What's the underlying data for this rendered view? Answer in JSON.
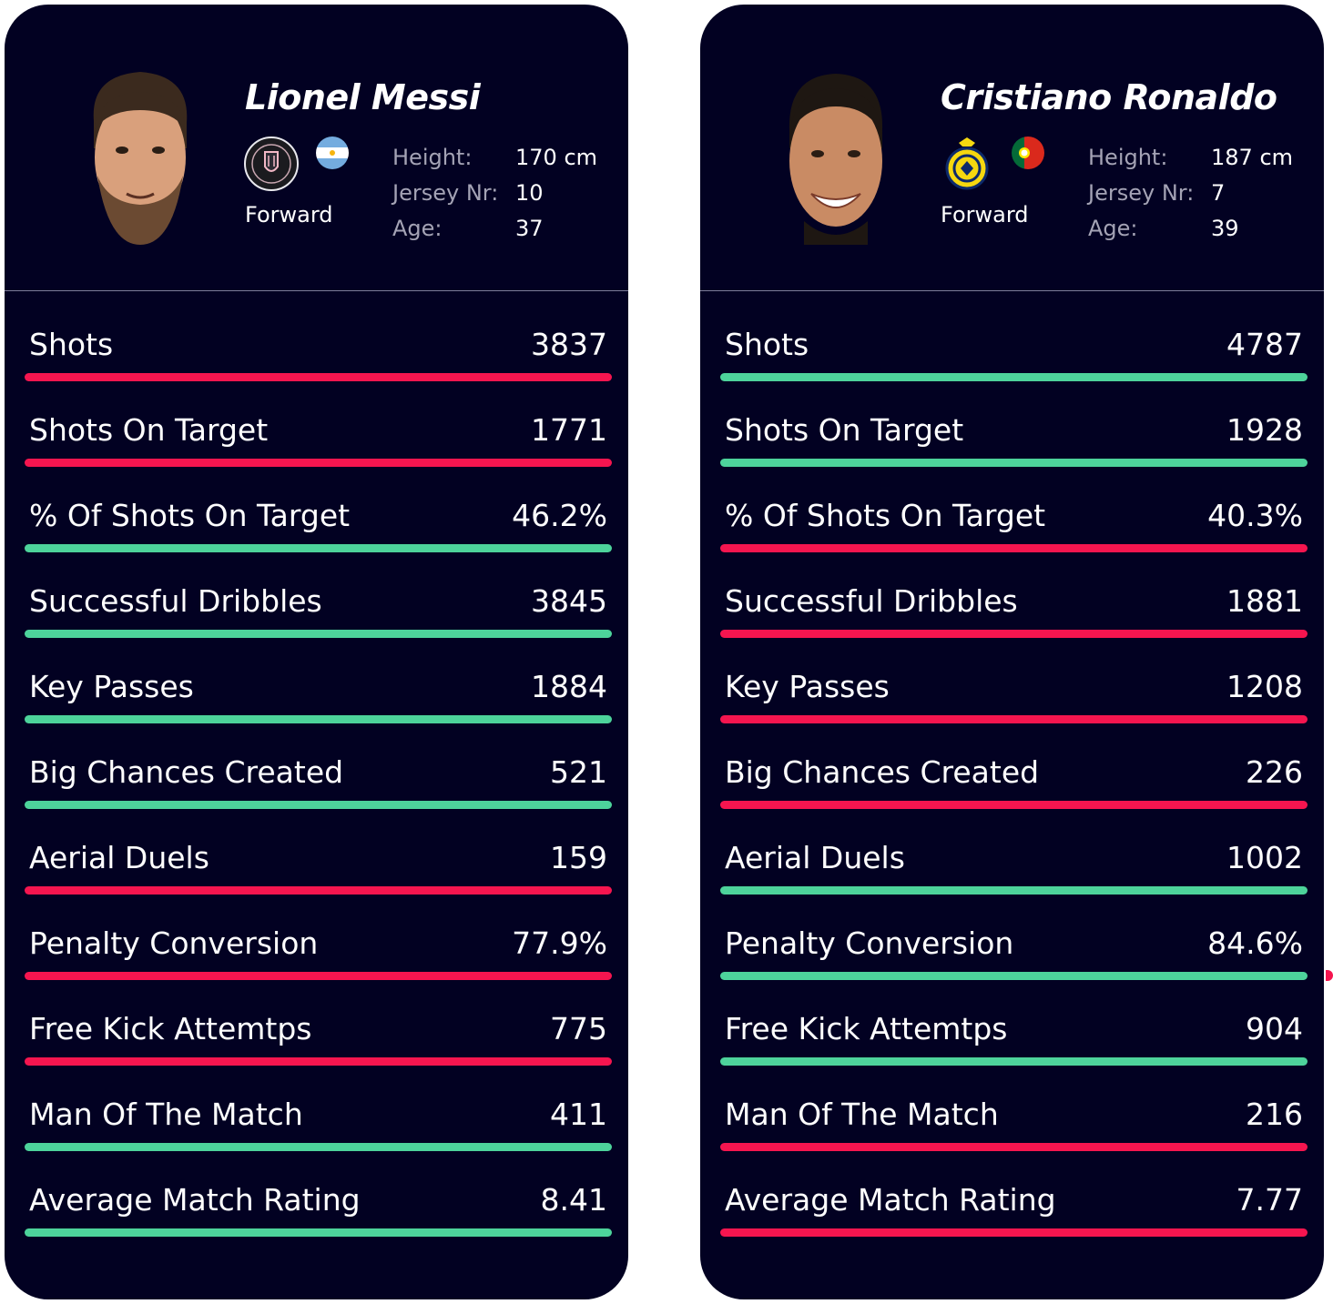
{
  "colors": {
    "background": "#020122",
    "better": "#4dd39b",
    "worse": "#f5154f"
  },
  "players": [
    {
      "name": "Lionel Messi",
      "club_icon": "inter-miami-crest-icon",
      "flag_icon": "argentina-flag-icon",
      "position": "Forward",
      "bio": [
        {
          "label": "Height:",
          "value": "170 cm"
        },
        {
          "label": "Jersey Nr:",
          "value": "10"
        },
        {
          "label": "Age:",
          "value": "37"
        }
      ],
      "stats": [
        {
          "label": "Shots",
          "value": "3837",
          "status": "worse"
        },
        {
          "label": "Shots On Target",
          "value": "1771",
          "status": "worse"
        },
        {
          "label": "% Of Shots On Target",
          "value": "46.2%",
          "status": "better"
        },
        {
          "label": "Successful Dribbles",
          "value": "3845",
          "status": "better"
        },
        {
          "label": "Key Passes",
          "value": "1884",
          "status": "better"
        },
        {
          "label": "Big Chances Created",
          "value": "521",
          "status": "better"
        },
        {
          "label": "Aerial Duels",
          "value": "159",
          "status": "worse"
        },
        {
          "label": "Penalty Conversion",
          "value": "77.9%",
          "status": "worse"
        },
        {
          "label": "Free Kick Attemtps",
          "value": "775",
          "status": "worse"
        },
        {
          "label": "Man Of The Match",
          "value": "411",
          "status": "better"
        },
        {
          "label": "Average Match Rating",
          "value": "8.41",
          "status": "better"
        }
      ]
    },
    {
      "name": "Cristiano Ronaldo",
      "club_icon": "al-nassr-crest-icon",
      "flag_icon": "portugal-flag-icon",
      "position": "Forward",
      "bio": [
        {
          "label": "Height:",
          "value": "187 cm"
        },
        {
          "label": "Jersey Nr:",
          "value": "7"
        },
        {
          "label": "Age:",
          "value": "39"
        }
      ],
      "stats": [
        {
          "label": "Shots",
          "value": "4787",
          "status": "better"
        },
        {
          "label": "Shots On Target",
          "value": "1928",
          "status": "better"
        },
        {
          "label": "% Of Shots On Target",
          "value": "40.3%",
          "status": "worse"
        },
        {
          "label": "Successful Dribbles",
          "value": "1881",
          "status": "worse"
        },
        {
          "label": "Key Passes",
          "value": "1208",
          "status": "worse"
        },
        {
          "label": "Big Chances Created",
          "value": "226",
          "status": "worse"
        },
        {
          "label": "Aerial Duels",
          "value": "1002",
          "status": "better"
        },
        {
          "label": "Penalty Conversion",
          "value": "84.6%",
          "status": "better"
        },
        {
          "label": "Free Kick Attemtps",
          "value": "904",
          "status": "better"
        },
        {
          "label": "Man Of The Match",
          "value": "216",
          "status": "worse"
        },
        {
          "label": "Average Match Rating",
          "value": "7.77",
          "status": "worse"
        }
      ]
    }
  ]
}
